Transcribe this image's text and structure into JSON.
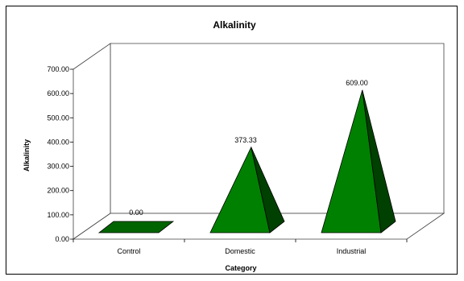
{
  "chart_data": {
    "type": "bar",
    "title": "Alkalinity",
    "xlabel": "Category",
    "ylabel": "Alkalinity",
    "categories": [
      "Control",
      "Domestic",
      "Industrial"
    ],
    "values": [
      0.0,
      373.33,
      609.0
    ],
    "data_labels": [
      "0.00",
      "373.33",
      "609.00"
    ],
    "yticks": [
      "0.00",
      "100.00",
      "200.00",
      "300.00",
      "400.00",
      "500.00",
      "600.00",
      "700.00"
    ],
    "ylim": [
      0,
      700
    ],
    "grid": false,
    "legend": "none",
    "style": "3d-pyramid",
    "colors": {
      "front": "#008000",
      "side": "#004000",
      "base": "#006400",
      "outline": "#000000"
    }
  }
}
